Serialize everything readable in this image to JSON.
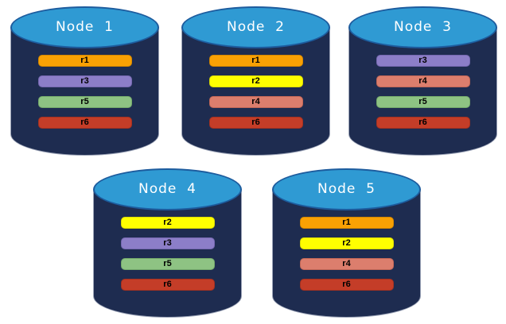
{
  "palette": {
    "cylinder_body": "#1E2C50",
    "cylinder_body_border": "#9AA2B6",
    "cylinder_top": "#2F9AD3",
    "cylinder_top_border": "#1D5C9E",
    "node_label_color": "#FFFFFF",
    "bar_text": "#000000"
  },
  "replica_styles": {
    "r1": {
      "fill": "#F9A104",
      "border": "#D48800"
    },
    "r2": {
      "fill": "#FFFF00",
      "border": "#DCDC00"
    },
    "r3": {
      "fill": "#8C7EC8",
      "border": "#7568B0"
    },
    "r4": {
      "fill": "#DC7E6D",
      "border": "#C26757"
    },
    "r5": {
      "fill": "#8EC383",
      "border": "#74A96B"
    },
    "r6": {
      "fill": "#C43D28",
      "border": "#A53120"
    }
  },
  "nodes": [
    {
      "label": "Node  1",
      "replicas": [
        "r1",
        "r3",
        "r5",
        "r6"
      ]
    },
    {
      "label": "Node  2",
      "replicas": [
        "r1",
        "r2",
        "r4",
        "r6"
      ]
    },
    {
      "label": "Node  3",
      "replicas": [
        "r3",
        "r4",
        "r5",
        "r6"
      ]
    },
    {
      "label": "Node  4",
      "replicas": [
        "r2",
        "r3",
        "r5",
        "r6"
      ]
    },
    {
      "label": "Node  5",
      "replicas": [
        "r1",
        "r2",
        "r4",
        "r6"
      ]
    }
  ]
}
